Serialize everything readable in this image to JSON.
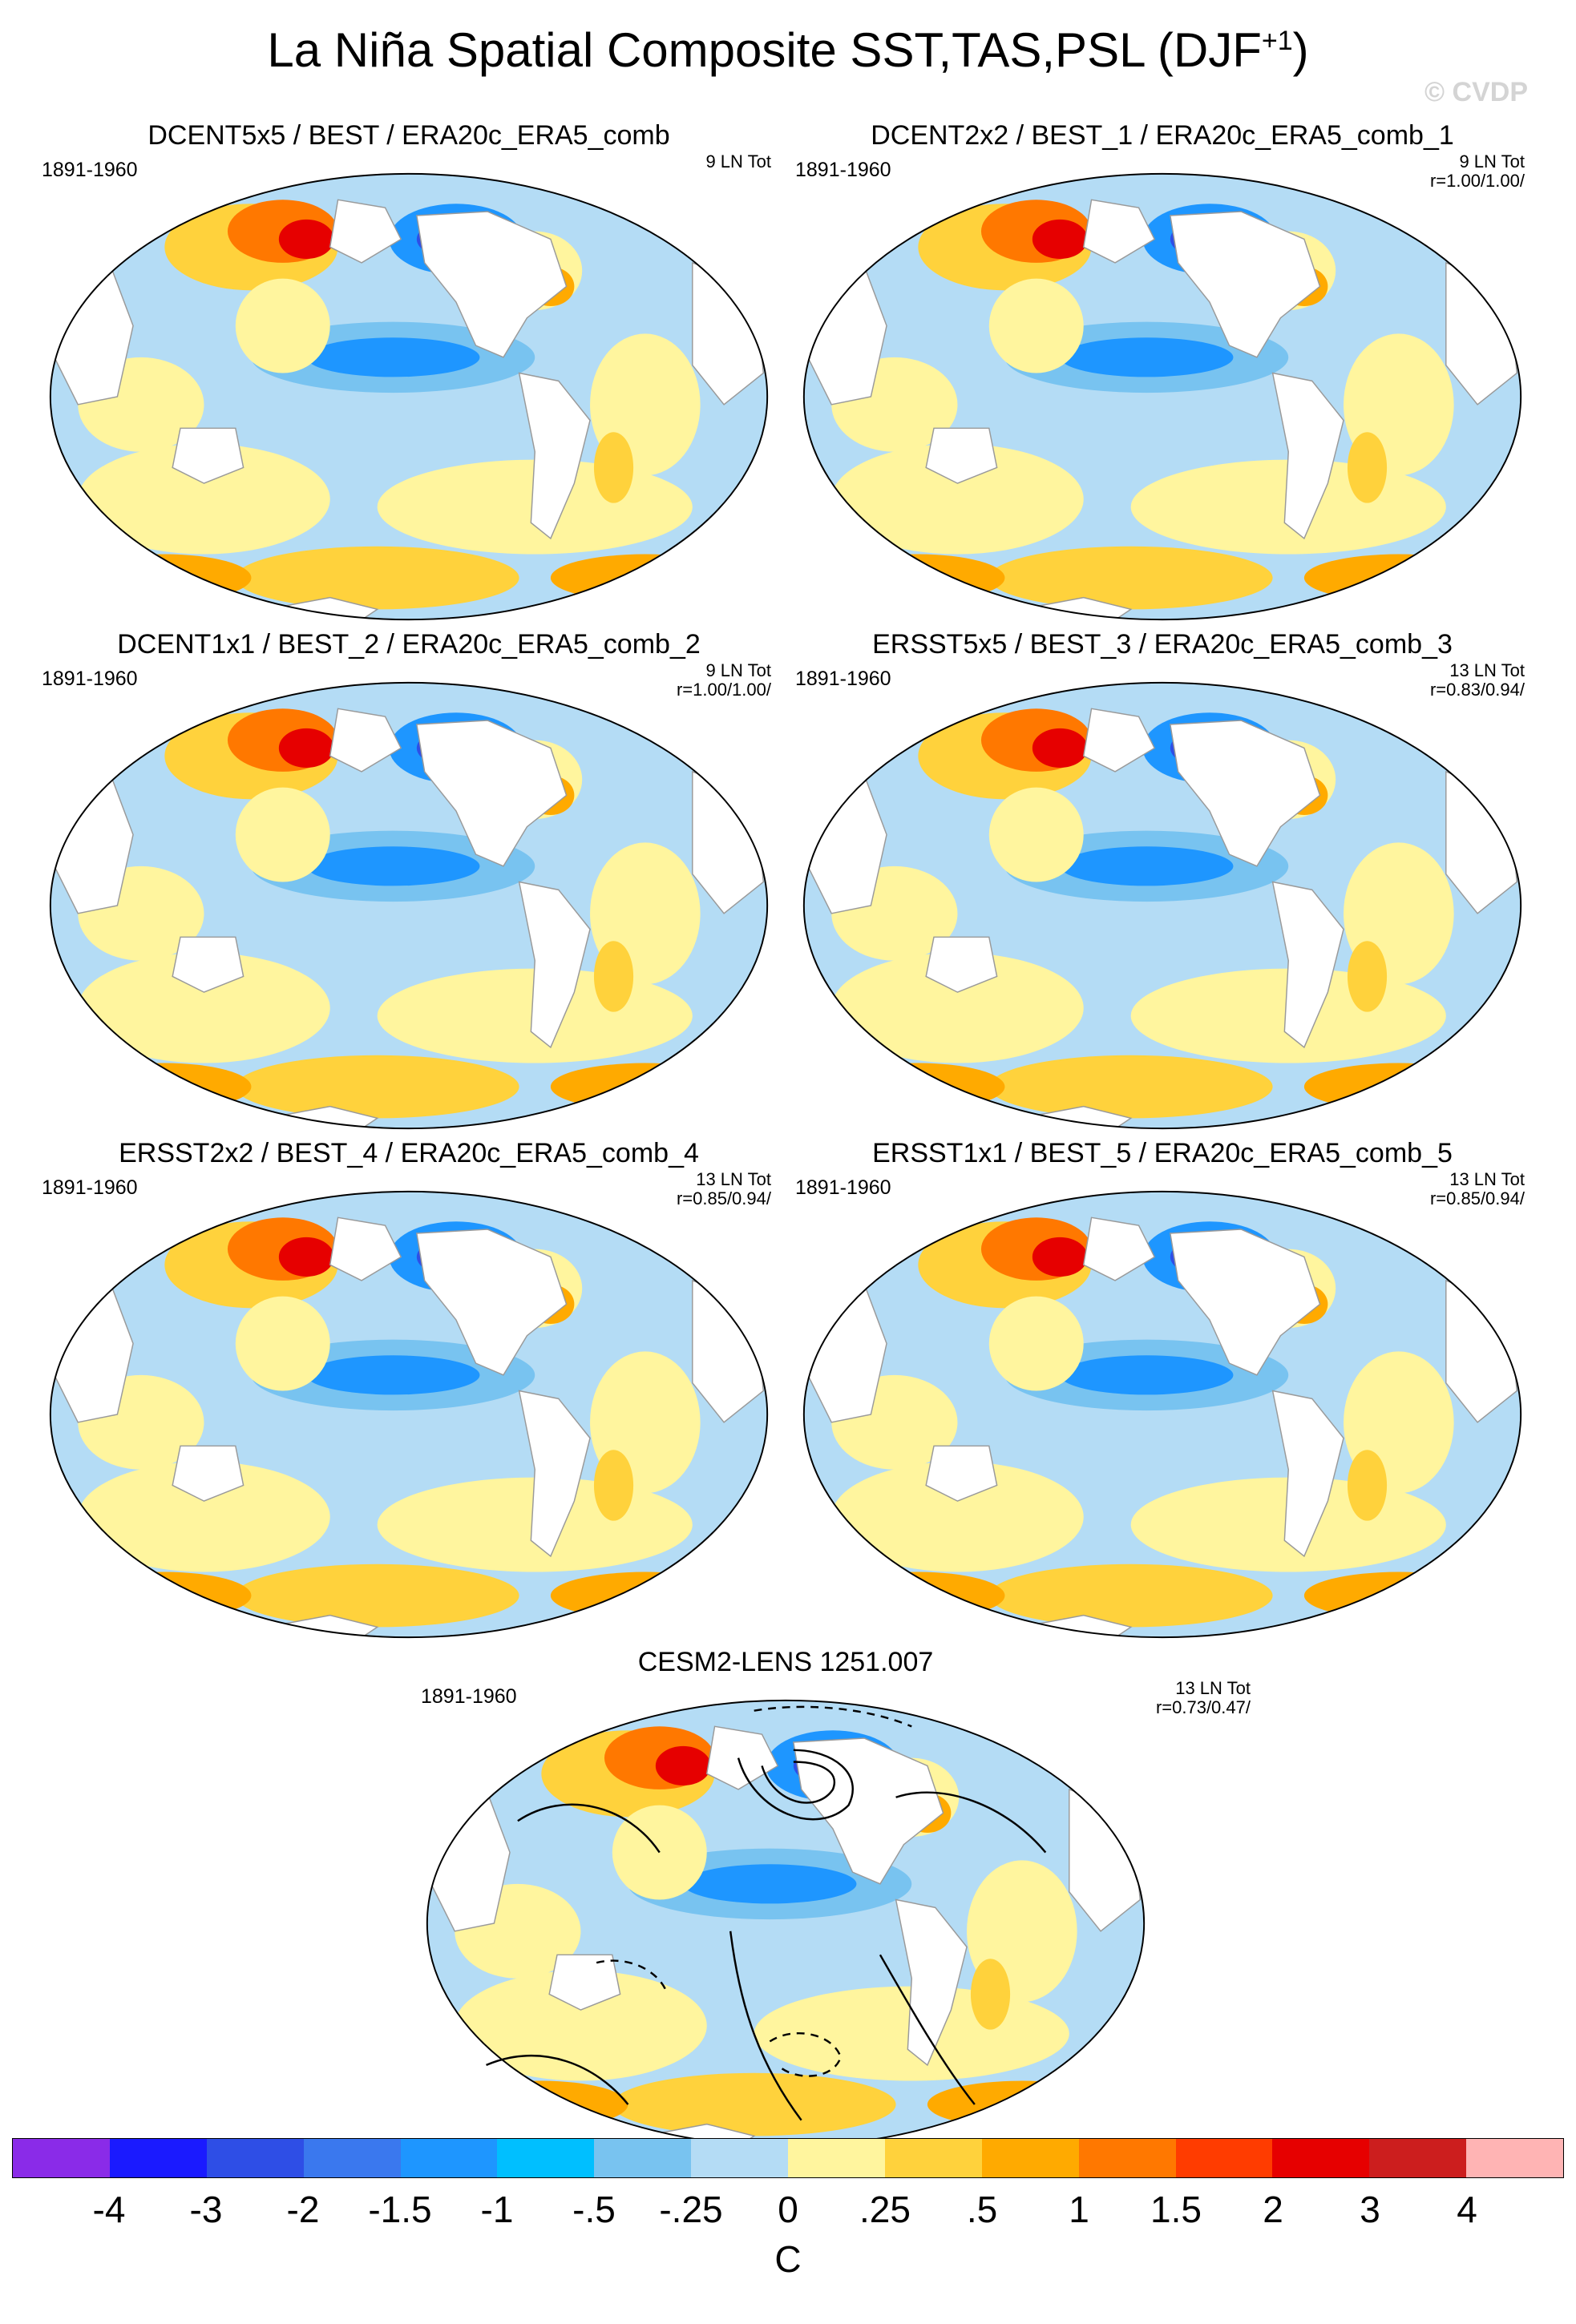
{
  "title": {
    "main": "La Niña Spatial Composite SST,TAS,PSL (DJF",
    "sup": "+1",
    "close": ")"
  },
  "watermark": "© CVDP",
  "panels": [
    {
      "title": "DCENT5x5 / BEST / ERA20c_ERA5_comb",
      "period": "1891-1960",
      "count": "9 LN Tot",
      "corr": ""
    },
    {
      "title": "DCENT2x2 / BEST_1 / ERA20c_ERA5_comb_1",
      "period": "1891-1960",
      "count": "9 LN Tot",
      "corr": "r=1.00/1.00/"
    },
    {
      "title": "DCENT1x1 / BEST_2 / ERA20c_ERA5_comb_2",
      "period": "1891-1960",
      "count": "9 LN Tot",
      "corr": "r=1.00/1.00/"
    },
    {
      "title": "ERSST5x5 / BEST_3 / ERA20c_ERA5_comb_3",
      "period": "1891-1960",
      "count": "13 LN Tot",
      "corr": "r=0.83/0.94/"
    },
    {
      "title": "ERSST2x2 / BEST_4 / ERA20c_ERA5_comb_4",
      "period": "1891-1960",
      "count": "13 LN Tot",
      "corr": "r=0.85/0.94/"
    },
    {
      "title": "ERSST1x1 / BEST_5 / ERA20c_ERA5_comb_5",
      "period": "1891-1960",
      "count": "13 LN Tot",
      "corr": "r=0.85/0.94/"
    },
    {
      "title": "CESM2-LENS 1251.007",
      "period": "1891-1960",
      "count": "13 LN Tot",
      "corr": "r=0.73/0.47/"
    }
  ],
  "colorbar": {
    "labels": [
      "-4",
      "-3",
      "-2",
      "-1.5",
      "-1",
      "-.5",
      "-.25",
      "0",
      ".25",
      ".5",
      "1",
      "1.5",
      "2",
      "3",
      "4"
    ],
    "colors": [
      "#8a2be8",
      "#1a1aff",
      "#2e4ee6",
      "#3a78ee",
      "#1e96ff",
      "#00bfff",
      "#78c3f0",
      "#b4dcf5",
      "#fff59e",
      "#ffd23c",
      "#ffaa00",
      "#ff7800",
      "#ff3c00",
      "#e60000",
      "#cc1e1e",
      "#ffb4b4"
    ],
    "units": "C"
  }
}
